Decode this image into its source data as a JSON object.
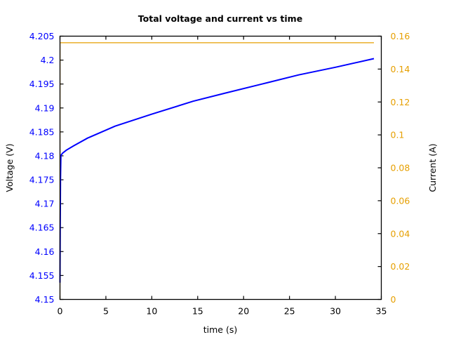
{
  "chart_data": {
    "type": "line",
    "title": "Total voltage and current vs time",
    "xlabel": "time (s)",
    "ylabel": "Voltage (V)",
    "y2label": "Current (A)",
    "xlim": [
      0,
      35
    ],
    "ylim": [
      4.15,
      4.205
    ],
    "y2lim": [
      0,
      0.16
    ],
    "xticks": [
      "0",
      "5",
      "10",
      "15",
      "20",
      "25",
      "30",
      "35"
    ],
    "yticks": [
      "4.15",
      "4.155",
      "4.16",
      "4.165",
      "4.17",
      "4.175",
      "4.18",
      "4.185",
      "4.19",
      "4.195",
      "4.2",
      "4.205"
    ],
    "y2ticks": [
      "0",
      "0.02",
      "0.04",
      "0.06",
      "0.08",
      "0.1",
      "0.12",
      "0.14",
      "0.16"
    ],
    "grid": false,
    "legend": null,
    "series": [
      {
        "name": "Voltage",
        "axis": "left",
        "color": "#0000ff",
        "x": [
          0,
          0.02,
          0.05,
          0.1,
          0.3,
          0.7,
          1.5,
          3,
          6,
          10,
          14.5,
          18,
          22,
          26,
          30,
          34.2
        ],
        "values": [
          4.1535,
          4.165,
          4.175,
          4.1801,
          4.1806,
          4.1812,
          4.1821,
          4.1837,
          4.1862,
          4.1887,
          4.1914,
          4.1931,
          4.195,
          4.1969,
          4.1985,
          4.2003
        ]
      },
      {
        "name": "Current",
        "axis": "right",
        "color": "#e69f00",
        "x": [
          0,
          0.01,
          34.2
        ],
        "values": [
          0,
          0.156,
          0.156
        ]
      }
    ]
  }
}
